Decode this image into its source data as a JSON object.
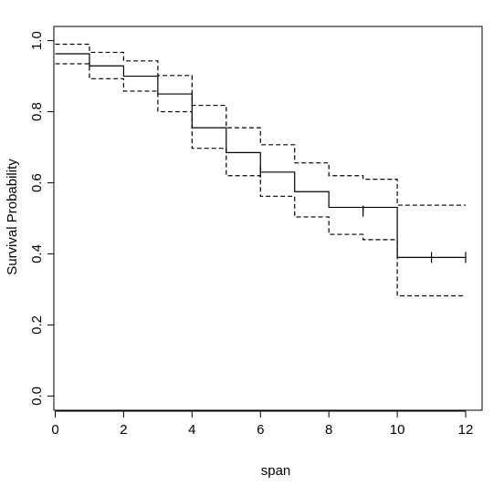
{
  "chart_data": {
    "type": "line",
    "title": "",
    "xlabel": "span",
    "ylabel": "Survival Probability",
    "xlim": [
      -0.04,
      12.48
    ],
    "ylim": [
      -0.04,
      1.04
    ],
    "x_ticks": [
      0,
      2,
      4,
      6,
      8,
      10,
      12
    ],
    "y_ticks": [
      0.0,
      0.2,
      0.4,
      0.6,
      0.8,
      1.0
    ],
    "x_tick_labels": [
      "0",
      "2",
      "4",
      "6",
      "8",
      "10",
      "12"
    ],
    "y_tick_labels": [
      "0.0",
      "0.2",
      "0.4",
      "0.6",
      "0.8",
      "1.0"
    ],
    "grid": false,
    "legend": "none",
    "series": [
      {
        "style": "solid",
        "step": true,
        "x": [
          0,
          1,
          2,
          3,
          4,
          5,
          6,
          7,
          8,
          10,
          12
        ],
        "y": [
          0.963,
          0.929,
          0.9,
          0.85,
          0.755,
          0.685,
          0.63,
          0.575,
          0.531,
          0.39,
          0.39
        ],
        "censor_marks": [
          {
            "x": 6.0,
            "y": 0.63
          },
          {
            "x": 9.0,
            "y": 0.52
          },
          {
            "x": 11.0,
            "y": 0.39
          },
          {
            "x": 12.0,
            "y": 0.39
          }
        ]
      },
      {
        "style": "dashed",
        "step": true,
        "x": [
          0,
          1,
          2,
          3,
          4,
          5,
          6,
          7,
          8,
          9,
          10,
          12
        ],
        "y": [
          0.99,
          0.967,
          0.943,
          0.902,
          0.818,
          0.755,
          0.707,
          0.656,
          0.62,
          0.61,
          0.537,
          0.537
        ]
      },
      {
        "style": "dashed",
        "step": true,
        "x": [
          0,
          1,
          2,
          3,
          4,
          5,
          6,
          7,
          8,
          9,
          10,
          12
        ],
        "y": [
          0.935,
          0.893,
          0.858,
          0.8,
          0.697,
          0.62,
          0.562,
          0.504,
          0.455,
          0.44,
          0.282,
          0.282
        ]
      }
    ],
    "extra_drops": [
      {
        "x": 9.0,
        "from": 0.531,
        "to": 0.52
      }
    ]
  }
}
